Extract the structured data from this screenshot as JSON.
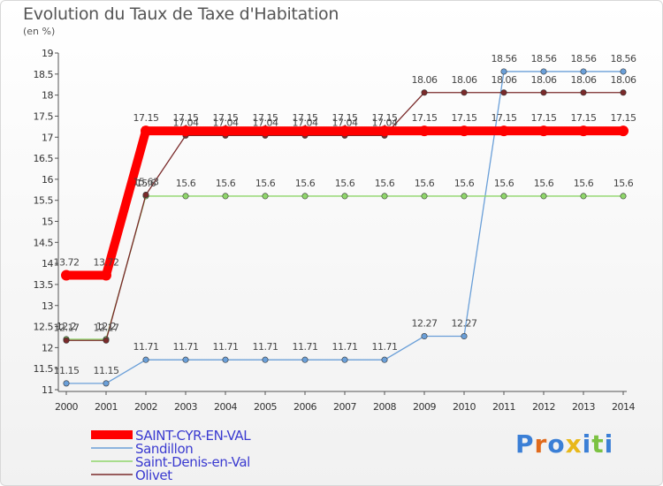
{
  "title": "Evolution du Taux de Taxe d'Habitation",
  "unit_label": "(en %)",
  "logo_text": "Proxiti",
  "chart_data": {
    "type": "line",
    "title": "Evolution du Taux de Taxe d'Habitation",
    "ylabel": "(en %)",
    "x": [
      "2000",
      "2001",
      "2002",
      "2003",
      "2004",
      "2005",
      "2006",
      "2007",
      "2008",
      "2009",
      "2010",
      "2011",
      "2012",
      "2013",
      "2014"
    ],
    "ylim": [
      11,
      19
    ],
    "yticks": [
      "11",
      "11.5",
      "12",
      "12.5",
      "13",
      "13.5",
      "14",
      "14.5",
      "15",
      "15.5",
      "16",
      "16.5",
      "17",
      "17.5",
      "18",
      "18.5",
      "19"
    ],
    "grid": false,
    "legend_position": "bottom-left",
    "series": [
      {
        "name": "SAINT-CYR-EN-VAL",
        "color": "#ff0000",
        "values": [
          13.72,
          13.72,
          17.15,
          17.15,
          17.15,
          17.15,
          17.15,
          17.15,
          17.15,
          17.15,
          17.15,
          17.15,
          17.15,
          17.15,
          17.15
        ],
        "labels": [
          "13.72",
          "13.72",
          "17.15",
          "17.15",
          "17.15",
          "17.15",
          "17.15",
          "17.15",
          "17.15",
          "17.15",
          "17.15",
          "17.15",
          "17.15",
          "17.15",
          "17.15"
        ]
      },
      {
        "name": "Sandillon",
        "color": "#6a9fd8",
        "values": [
          11.15,
          11.15,
          11.71,
          11.71,
          11.71,
          11.71,
          11.71,
          11.71,
          11.71,
          12.27,
          12.27,
          18.56,
          18.56,
          18.56,
          18.56
        ],
        "labels": [
          "11.15",
          "11.15",
          "11.71",
          "11.71",
          "11.71",
          "11.71",
          "11.71",
          "11.71",
          "11.71",
          "12.27",
          "12.27",
          "18.56",
          "18.56",
          "18.56",
          "18.56"
        ]
      },
      {
        "name": "Saint-Denis-en-Val",
        "color": "#8fd66a",
        "values": [
          12.2,
          12.2,
          15.6,
          15.6,
          15.6,
          15.6,
          15.6,
          15.6,
          15.6,
          15.6,
          15.6,
          15.6,
          15.6,
          15.6,
          15.6
        ],
        "labels": [
          "12.2",
          "12.2",
          "15.6",
          "15.6",
          "15.6",
          "15.6",
          "15.6",
          "15.6",
          "15.6",
          "15.6",
          "15.6",
          "15.6",
          "15.6",
          "15.6",
          "15.6"
        ]
      },
      {
        "name": "Olivet",
        "color": "#7a2a2a",
        "values": [
          12.17,
          12.17,
          15.63,
          17.04,
          17.04,
          17.04,
          17.04,
          17.04,
          17.04,
          18.06,
          18.06,
          18.06,
          18.06,
          18.06,
          18.06
        ],
        "labels": [
          "12.17",
          "12.17",
          "15.63",
          "17.04",
          "17.04",
          "17.04",
          "17.04",
          "17.04",
          "17.04",
          "18.06",
          "18.06",
          "18.06",
          "18.06",
          "18.06",
          "18.06"
        ]
      }
    ]
  }
}
